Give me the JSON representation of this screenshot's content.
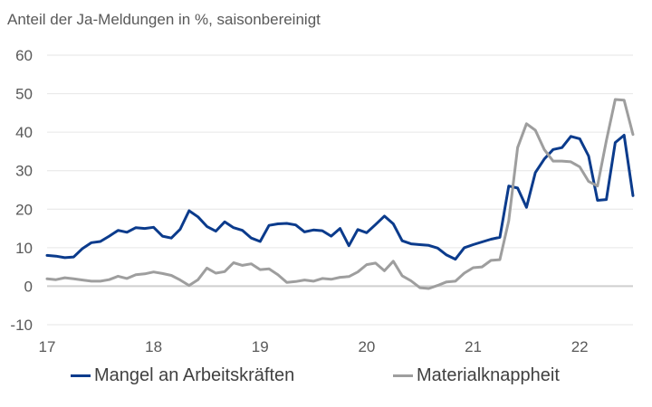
{
  "chart_data": {
    "type": "line",
    "title": "Anteil der Ja-Meldungen in %, saisonbereinigt",
    "xlabel": "",
    "ylabel": "",
    "ylim": [
      -10,
      60
    ],
    "yticks": [
      -10,
      0,
      10,
      20,
      30,
      40,
      50,
      60
    ],
    "xlim": [
      0,
      66
    ],
    "xticks": [
      {
        "pos": 0,
        "label": "17"
      },
      {
        "pos": 12,
        "label": "18"
      },
      {
        "pos": 24,
        "label": "19"
      },
      {
        "pos": 36,
        "label": "20"
      },
      {
        "pos": 48,
        "label": "21"
      },
      {
        "pos": 60,
        "label": "22"
      }
    ],
    "grid": "horizontal",
    "legend_position": "bottom",
    "series": [
      {
        "name": "Mangel an Arbeitskräften",
        "color": "#0b3b8c",
        "values": [
          8,
          7.8,
          7.4,
          7.6,
          9.8,
          11.3,
          11.6,
          13,
          14.5,
          14,
          15.2,
          15,
          15.3,
          13,
          12.5,
          14.8,
          19.6,
          18,
          15.5,
          14.3,
          16.7,
          15.2,
          14.5,
          12.5,
          11.6,
          15.8,
          16.2,
          16.3,
          15.9,
          14.1,
          14.6,
          14.4,
          13,
          15,
          10.5,
          14.7,
          13.9,
          16,
          18.2,
          16.2,
          11.8,
          11,
          10.8,
          10.6,
          9.9,
          8.1,
          7,
          10,
          10.8,
          11.5,
          12.2,
          12.7,
          26,
          25.5,
          20.5,
          29.5,
          33,
          35.5,
          36,
          38.9,
          38.3,
          33.8,
          22.3,
          22.5,
          37.3,
          39.2,
          23.5
        ]
      },
      {
        "name": "Materialknappheit",
        "color": "#9e9e9e",
        "values": [
          1.9,
          1.7,
          2.2,
          1.9,
          1.6,
          1.3,
          1.3,
          1.7,
          2.6,
          2,
          3,
          3.2,
          3.7,
          3.3,
          2.8,
          1.6,
          0.2,
          1.7,
          4.7,
          3.4,
          3.8,
          6.1,
          5.4,
          5.8,
          4.3,
          4.5,
          3,
          1,
          1.2,
          1.6,
          1.3,
          2,
          1.8,
          2.3,
          2.5,
          3.7,
          5.6,
          6,
          4,
          6.5,
          2.7,
          1.4,
          -0.4,
          -0.6,
          0.2,
          1.1,
          1.3,
          3.4,
          4.8,
          5,
          6.7,
          6.9,
          17,
          36,
          42.2,
          40.5,
          35.5,
          32.5,
          32.5,
          32.3,
          31,
          27.2,
          26,
          37.8,
          48.5,
          48.3,
          39.4
        ]
      }
    ]
  }
}
